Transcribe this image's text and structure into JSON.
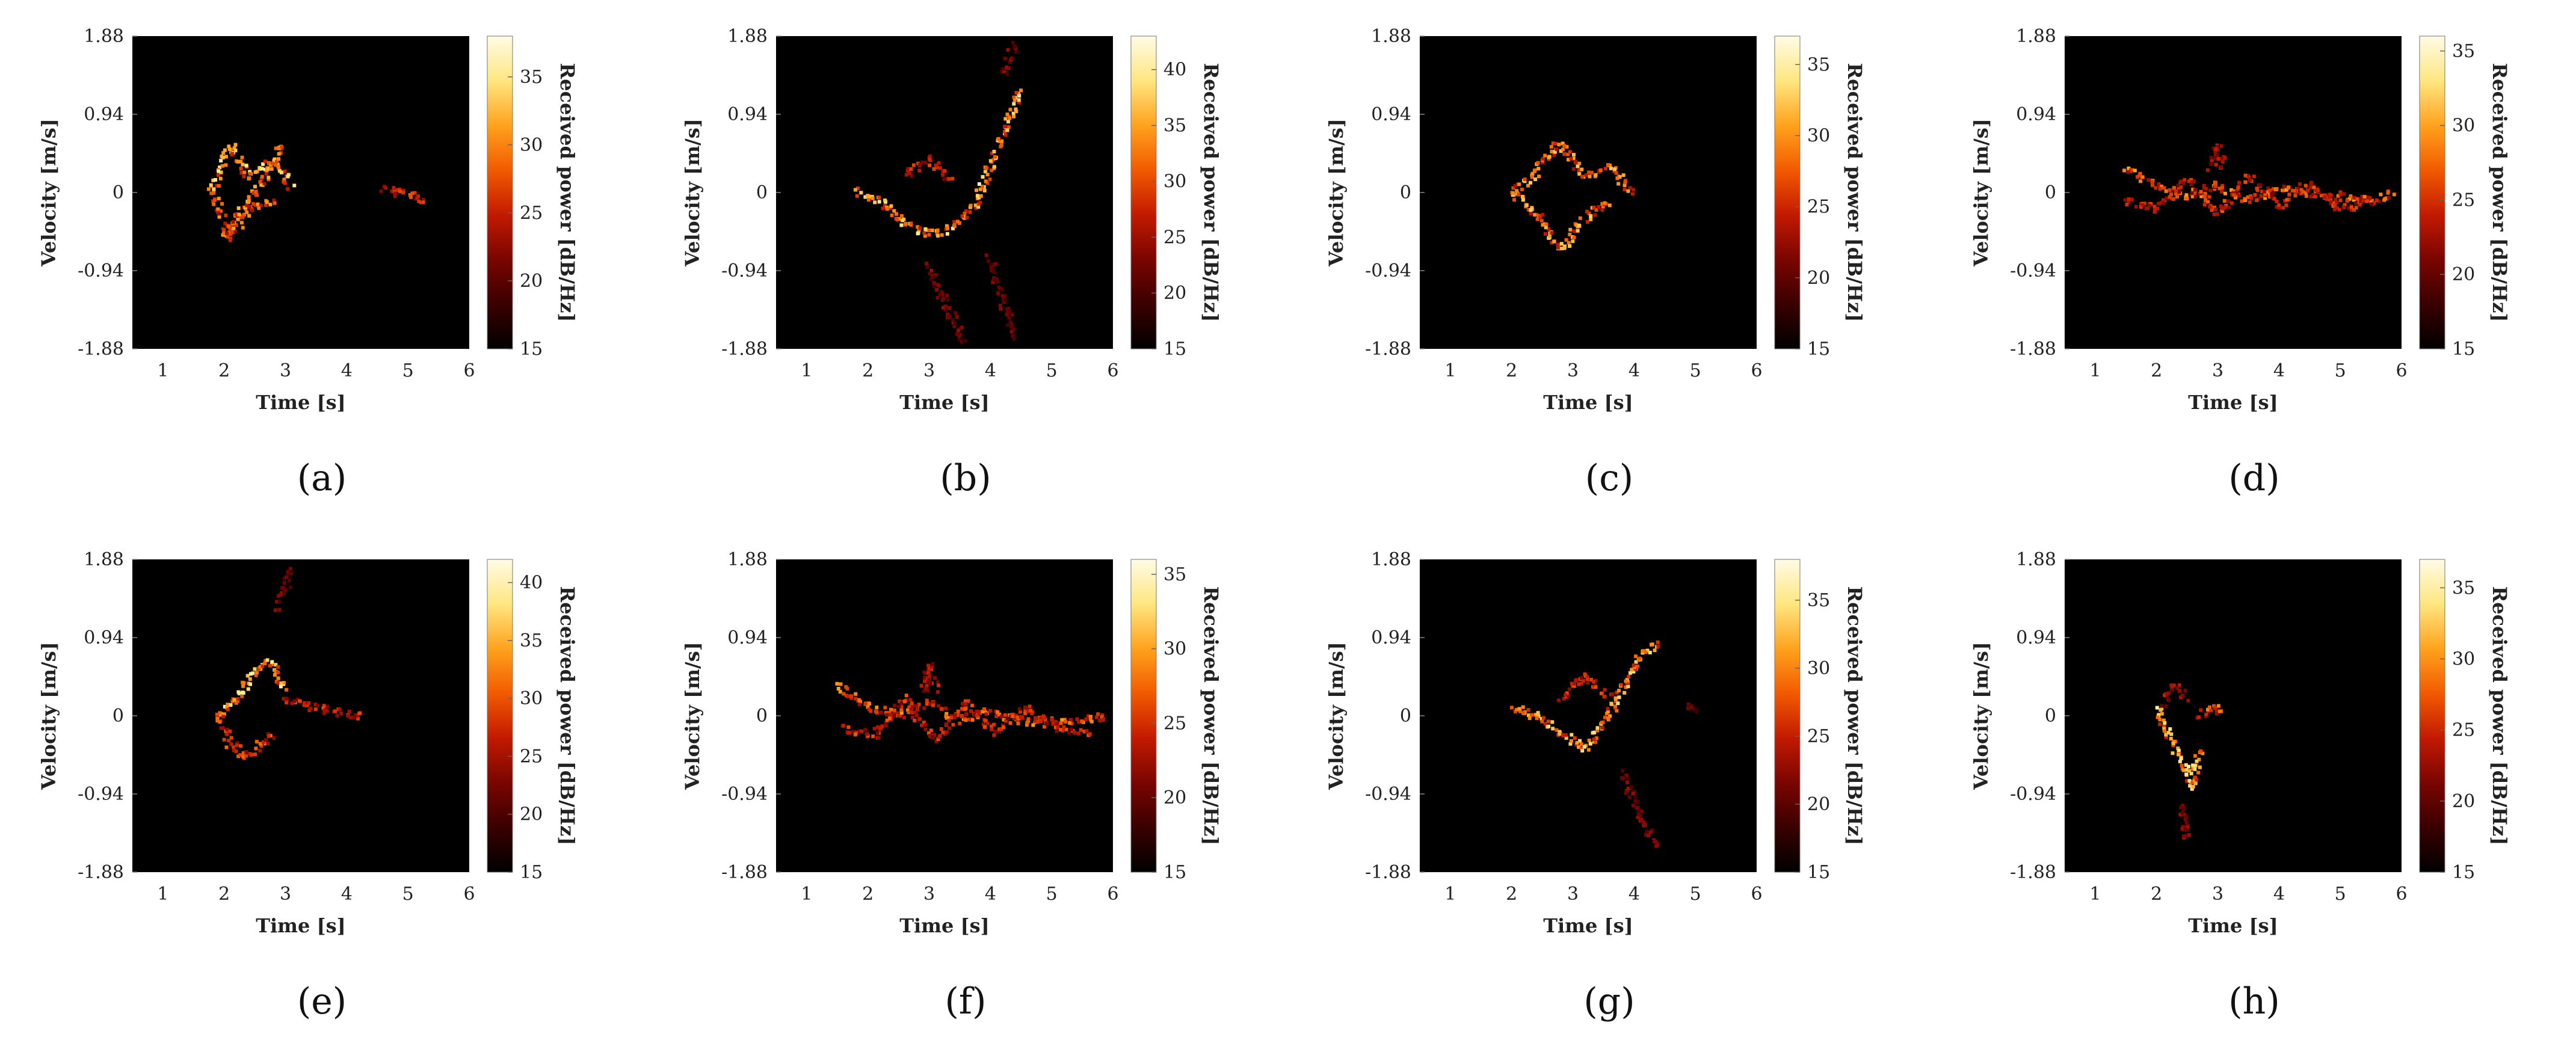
{
  "figure": {
    "colorbar_label": "Received power [dB/Hz]",
    "colormap": [
      "#000000",
      "#3a0000",
      "#7a0500",
      "#c21a00",
      "#f25a00",
      "#ffa21e",
      "#ffe680",
      "#fffbe6"
    ]
  },
  "chart_data": [
    {
      "id": "a",
      "label": "(a)",
      "type": "heatmap",
      "xlabel": "Time [s]",
      "ylabel": "Velocity [m/s]",
      "xticks": [
        "1",
        "2",
        "3",
        "4",
        "5",
        "6"
      ],
      "xlim": [
        0.5,
        6
      ],
      "yticks": [
        "1.88",
        "0.94",
        "0",
        "-0.94",
        "-1.88"
      ],
      "ylim": [
        -1.88,
        1.88
      ],
      "cticks": [
        "15",
        "20",
        "25",
        "30",
        "35"
      ],
      "clim": [
        15,
        38
      ],
      "features": [
        {
          "t": [
            1.8,
            2.1,
            2.4,
            2.8,
            3.1
          ],
          "v": [
            0.0,
            0.55,
            0.2,
            0.4,
            0.05
          ],
          "peak": 36
        },
        {
          "t": [
            1.8,
            2.1,
            2.4,
            2.8
          ],
          "v": [
            0.0,
            -0.55,
            -0.2,
            -0.1
          ],
          "peak": 31
        },
        {
          "t": [
            2.0,
            2.5,
            3.0
          ],
          "v": [
            -0.55,
            0.0,
            0.6
          ],
          "peak": 33
        },
        {
          "t": [
            4.6,
            4.9,
            5.3
          ],
          "v": [
            0.05,
            -0.02,
            -0.08
          ],
          "peak": 28
        }
      ]
    },
    {
      "id": "b",
      "label": "(b)",
      "type": "heatmap",
      "xlabel": "Time [s]",
      "ylabel": "Velocity [m/s]",
      "xticks": [
        "1",
        "2",
        "3",
        "4",
        "5",
        "6"
      ],
      "xlim": [
        0.5,
        6
      ],
      "yticks": [
        "1.88",
        "0.94",
        "0",
        "-0.94",
        "-1.88"
      ],
      "ylim": [
        -1.88,
        1.88
      ],
      "cticks": [
        "15",
        "20",
        "25",
        "30",
        "35",
        "40"
      ],
      "clim": [
        15,
        43
      ],
      "features": [
        {
          "t": [
            1.8,
            2.2,
            2.6,
            3.0,
            3.3,
            3.7
          ],
          "v": [
            0.0,
            -0.1,
            -0.35,
            -0.5,
            -0.45,
            -0.2
          ],
          "peak": 40
        },
        {
          "t": [
            3.7,
            4.0,
            4.3,
            4.5
          ],
          "v": [
            -0.2,
            0.3,
            0.9,
            1.25
          ],
          "peak": 41
        },
        {
          "t": [
            2.6,
            3.0,
            3.4
          ],
          "v": [
            0.2,
            0.4,
            0.15
          ],
          "peak": 30
        },
        {
          "t": [
            3.0,
            3.3,
            3.6
          ],
          "v": [
            -0.9,
            -1.4,
            -1.8
          ],
          "peak": 25
        },
        {
          "t": [
            4.0,
            4.2,
            4.4
          ],
          "v": [
            -0.8,
            -1.3,
            -1.75
          ],
          "peak": 24
        },
        {
          "t": [
            4.2,
            4.4
          ],
          "v": [
            1.4,
            1.8
          ],
          "peak": 25
        }
      ]
    },
    {
      "id": "c",
      "label": "(c)",
      "type": "heatmap",
      "xlabel": "Time [s]",
      "ylabel": "Velocity [m/s]",
      "xticks": [
        "1",
        "2",
        "3",
        "4",
        "5",
        "6"
      ],
      "xlim": [
        0.5,
        6
      ],
      "yticks": [
        "1.88",
        "0.94",
        "0",
        "-0.94",
        "-1.88"
      ],
      "ylim": [
        -1.88,
        1.88
      ],
      "cticks": [
        "15",
        "20",
        "25",
        "30",
        "35"
      ],
      "clim": [
        15,
        37
      ],
      "features": [
        {
          "t": [
            2.0,
            2.4,
            2.8,
            3.2,
            3.6,
            4.0
          ],
          "v": [
            0.0,
            0.25,
            0.6,
            0.2,
            0.3,
            0.0
          ],
          "peak": 33
        },
        {
          "t": [
            2.0,
            2.4,
            2.8,
            3.2,
            3.6
          ],
          "v": [
            0.0,
            -0.25,
            -0.7,
            -0.3,
            -0.1
          ],
          "peak": 34
        }
      ]
    },
    {
      "id": "d",
      "label": "(d)",
      "type": "heatmap",
      "xlabel": "Time [s]",
      "ylabel": "Velocity [m/s]",
      "xticks": [
        "1",
        "2",
        "3",
        "4",
        "5",
        "6"
      ],
      "xlim": [
        0.5,
        6
      ],
      "yticks": [
        "1.88",
        "0.94",
        "0",
        "-0.94",
        "-1.88"
      ],
      "ylim": [
        -1.88,
        1.88
      ],
      "cticks": [
        "15",
        "20",
        "25",
        "30",
        "35"
      ],
      "clim": [
        15,
        36
      ],
      "features": [
        {
          "t": [
            1.5,
            2.0,
            2.5,
            3.0,
            3.5,
            4.0,
            4.5,
            5.0,
            5.5,
            5.9
          ],
          "v": [
            0.3,
            0.1,
            -0.05,
            0.1,
            -0.1,
            0.05,
            0.0,
            -0.05,
            -0.1,
            0.0
          ],
          "peak": 30
        },
        {
          "t": [
            1.5,
            2.0,
            2.5,
            3.0,
            3.5,
            4.0,
            4.5,
            5.0,
            5.5
          ],
          "v": [
            -0.1,
            -0.2,
            0.15,
            -0.25,
            0.2,
            -0.15,
            0.1,
            -0.2,
            -0.1
          ],
          "peak": 27
        },
        {
          "t": [
            2.9,
            3.0,
            3.1
          ],
          "v": [
            0.3,
            0.55,
            0.3
          ],
          "peak": 25
        }
      ]
    },
    {
      "id": "e",
      "label": "(e)",
      "type": "heatmap",
      "xlabel": "Time [s]",
      "ylabel": "Velocity [m/s]",
      "xticks": [
        "1",
        "2",
        "3",
        "4",
        "5",
        "6"
      ],
      "xlim": [
        0.5,
        6
      ],
      "yticks": [
        "1.88",
        "0.94",
        "0",
        "-0.94",
        "-1.88"
      ],
      "ylim": [
        -1.88,
        1.88
      ],
      "cticks": [
        "15",
        "20",
        "25",
        "30",
        "35",
        "40"
      ],
      "clim": [
        15,
        42
      ],
      "features": [
        {
          "t": [
            1.9,
            2.2,
            2.5,
            2.8,
            3.0
          ],
          "v": [
            0.0,
            0.2,
            0.55,
            0.65,
            0.3
          ],
          "peak": 40
        },
        {
          "t": [
            1.9,
            2.1,
            2.4,
            2.8
          ],
          "v": [
            0.0,
            -0.35,
            -0.5,
            -0.2
          ],
          "peak": 32
        },
        {
          "t": [
            3.0,
            3.4,
            3.8,
            4.3
          ],
          "v": [
            0.2,
            0.1,
            0.05,
            0.0
          ],
          "peak": 30
        },
        {
          "t": [
            2.9,
            3.0,
            3.1
          ],
          "v": [
            1.3,
            1.55,
            1.75
          ],
          "peak": 24
        }
      ]
    },
    {
      "id": "f",
      "label": "(f)",
      "type": "heatmap",
      "xlabel": "Time [s]",
      "ylabel": "Velocity [m/s]",
      "xticks": [
        "1",
        "2",
        "3",
        "4",
        "5",
        "6"
      ],
      "xlim": [
        0.5,
        6
      ],
      "yticks": [
        "1.88",
        "0.94",
        "0",
        "-0.94",
        "-1.88"
      ],
      "ylim": [
        -1.88,
        1.88
      ],
      "cticks": [
        "15",
        "20",
        "25",
        "30",
        "35"
      ],
      "clim": [
        15,
        36
      ],
      "features": [
        {
          "t": [
            1.5,
            2.0,
            2.5,
            3.0,
            3.5,
            4.0,
            4.5,
            5.0,
            5.5,
            5.9
          ],
          "v": [
            0.35,
            0.1,
            0.0,
            0.15,
            -0.05,
            0.05,
            -0.05,
            -0.1,
            -0.05,
            0.0
          ],
          "peak": 30
        },
        {
          "t": [
            1.6,
            2.1,
            2.6,
            3.1,
            3.6,
            4.1,
            4.6,
            5.1,
            5.6
          ],
          "v": [
            -0.15,
            -0.25,
            0.2,
            -0.3,
            0.15,
            -0.2,
            0.1,
            -0.15,
            -0.2
          ],
          "peak": 27
        },
        {
          "t": [
            2.9,
            3.0,
            3.1
          ],
          "v": [
            0.3,
            0.6,
            0.3
          ],
          "peak": 25
        }
      ]
    },
    {
      "id": "g",
      "label": "(g)",
      "type": "heatmap",
      "xlabel": "Time [s]",
      "ylabel": "Velocity [m/s]",
      "xticks": [
        "1",
        "2",
        "3",
        "4",
        "5",
        "6"
      ],
      "xlim": [
        0.5,
        6
      ],
      "yticks": [
        "1.88",
        "0.94",
        "0",
        "-0.94",
        "-1.88"
      ],
      "ylim": [
        -1.88,
        1.88
      ],
      "cticks": [
        "15",
        "20",
        "25",
        "30",
        "35"
      ],
      "clim": [
        15,
        38
      ],
      "features": [
        {
          "t": [
            2.0,
            2.4,
            2.8,
            3.2,
            3.5
          ],
          "v": [
            0.1,
            0.0,
            -0.2,
            -0.4,
            -0.1
          ],
          "peak": 35
        },
        {
          "t": [
            3.5,
            3.8,
            4.1,
            4.4
          ],
          "v": [
            -0.1,
            0.3,
            0.7,
            0.9
          ],
          "peak": 35
        },
        {
          "t": [
            2.8,
            3.2,
            3.6
          ],
          "v": [
            0.2,
            0.5,
            0.2
          ],
          "peak": 28
        },
        {
          "t": [
            3.8,
            4.1,
            4.4
          ],
          "v": [
            -0.7,
            -1.2,
            -1.6
          ],
          "peak": 23
        },
        {
          "t": [
            4.9,
            5.1
          ],
          "v": [
            0.1,
            0.1
          ],
          "peak": 21
        }
      ]
    },
    {
      "id": "h",
      "label": "(h)",
      "type": "heatmap",
      "xlabel": "Time [s]",
      "ylabel": "Velocity [m/s]",
      "xticks": [
        "1",
        "2",
        "3",
        "4",
        "5",
        "6"
      ],
      "xlim": [
        0.5,
        6
      ],
      "yticks": [
        "1.88",
        "0.94",
        "0",
        "-0.94",
        "-1.88"
      ],
      "ylim": [
        -1.88,
        1.88
      ],
      "cticks": [
        "15",
        "20",
        "25",
        "30",
        "35"
      ],
      "clim": [
        15,
        37
      ],
      "features": [
        {
          "t": [
            2.0,
            2.2,
            2.4,
            2.6,
            2.7
          ],
          "v": [
            0.1,
            -0.2,
            -0.55,
            -0.85,
            -0.4
          ],
          "peak": 35
        },
        {
          "t": [
            2.7,
            2.9,
            3.1
          ],
          "v": [
            0.0,
            0.1,
            0.05
          ],
          "peak": 30
        },
        {
          "t": [
            2.1,
            2.3,
            2.5
          ],
          "v": [
            0.15,
            0.35,
            0.2
          ],
          "peak": 26
        },
        {
          "t": [
            2.4,
            2.5
          ],
          "v": [
            -1.1,
            -1.5
          ],
          "peak": 24
        }
      ]
    }
  ]
}
